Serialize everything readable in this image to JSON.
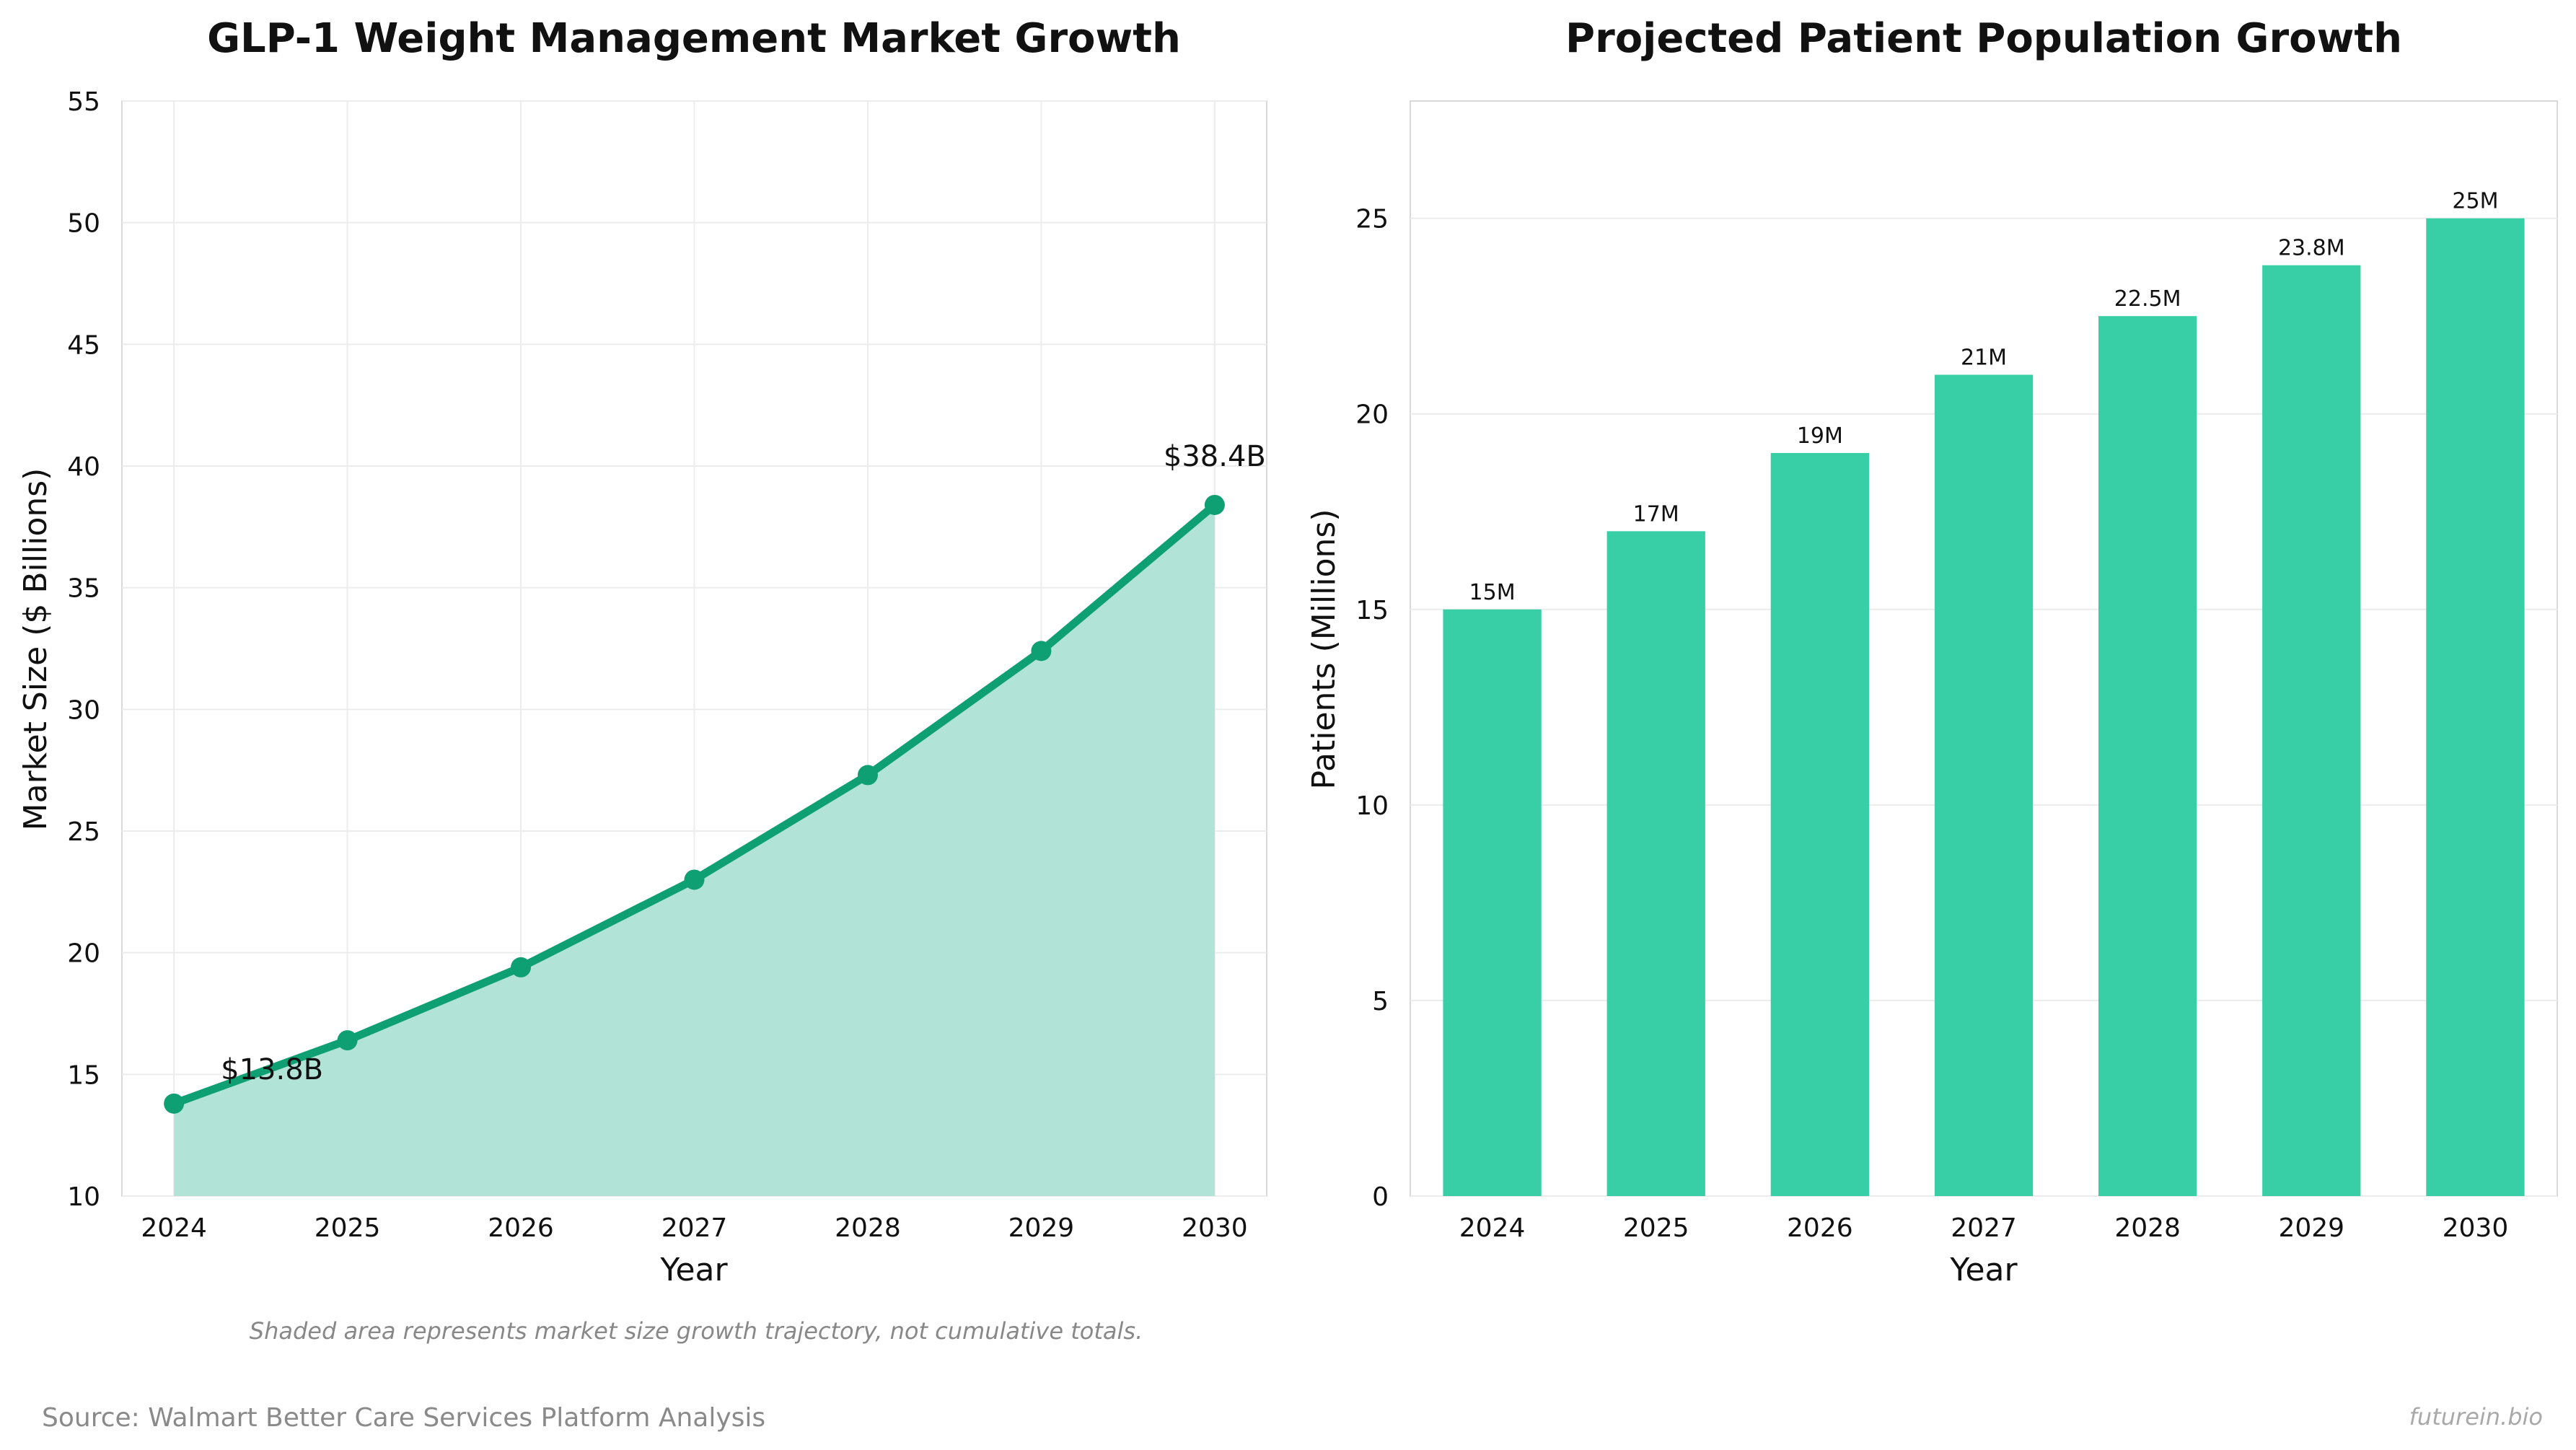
{
  "chart_data": [
    {
      "type": "area",
      "title": "GLP-1 Weight Management Market Growth",
      "xlabel": "Year",
      "ylabel": "Market Size ($ Billions)",
      "x": [
        2024,
        2025,
        2026,
        2027,
        2028,
        2029,
        2030
      ],
      "series": [
        {
          "values": [
            13.8,
            16.4,
            19.4,
            23.0,
            27.3,
            32.4,
            38.4
          ]
        }
      ],
      "yticks": [
        10,
        15,
        20,
        25,
        30,
        35,
        40,
        45,
        50,
        55
      ],
      "xticks": [
        2024,
        2025,
        2026,
        2027,
        2028,
        2029,
        2030
      ],
      "ylim": [
        10,
        55
      ],
      "xlim": [
        2023.7,
        2030.3
      ],
      "grid": true,
      "annotations": [
        {
          "x": 2024,
          "y": 13.8,
          "text": "$13.8B"
        },
        {
          "x": 2030,
          "y": 38.4,
          "text": "$38.4B"
        }
      ],
      "colors": {
        "line": "#0e9f72",
        "fill": "#b2e3d7"
      },
      "note": "Shaded area represents market size growth trajectory, not cumulative totals."
    },
    {
      "type": "bar",
      "title": "Projected Patient Population Growth",
      "xlabel": "Year",
      "ylabel": "Patients (Millions)",
      "categories": [
        "2024",
        "2025",
        "2026",
        "2027",
        "2028",
        "2029",
        "2030"
      ],
      "values": [
        15,
        17,
        19,
        21,
        22.5,
        23.8,
        25
      ],
      "data_labels": [
        "15M",
        "17M",
        "19M",
        "21M",
        "22.5M",
        "23.8M",
        "25M"
      ],
      "yticks": [
        0,
        5,
        10,
        15,
        20,
        25
      ],
      "ylim": [
        0,
        28
      ],
      "grid": true,
      "colors": {
        "bar": "#38cea6"
      }
    }
  ],
  "footer": {
    "source": "Source: Walmart Better Care Services Platform Analysis",
    "brand": "futurein.bio"
  }
}
